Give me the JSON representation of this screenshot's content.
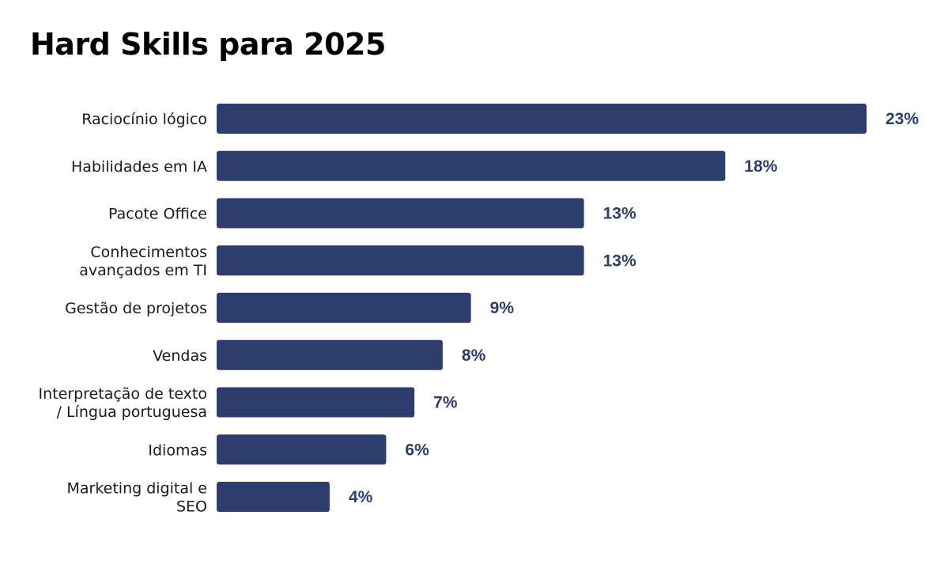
{
  "title": "Hard Skills para 2025",
  "colors": {
    "bar": "#2d3e6e",
    "value_label": "#2d3e6e"
  },
  "chart_data": {
    "type": "bar",
    "orientation": "horizontal",
    "title": "Hard Skills para 2025",
    "categories": [
      [
        "Raciocínio lógico"
      ],
      [
        "Habilidades em IA"
      ],
      [
        "Pacote Office"
      ],
      [
        "Conhecimentos",
        "avançados em TI"
      ],
      [
        "Gestão de projetos"
      ],
      [
        "Vendas"
      ],
      [
        "Interpretação de texto",
        "/ Língua portuguesa"
      ],
      [
        "Idiomas"
      ],
      [
        "Marketing digital e",
        "SEO"
      ]
    ],
    "values": [
      23,
      18,
      13,
      13,
      9,
      8,
      7,
      6,
      4
    ],
    "value_labels": [
      "23%",
      "18%",
      "13%",
      "13%",
      "9%",
      "8%",
      "7%",
      "6%",
      "4%"
    ],
    "xlabel": "",
    "ylabel": "",
    "xlim": [
      0,
      23
    ],
    "grid": false,
    "legend": "none"
  }
}
